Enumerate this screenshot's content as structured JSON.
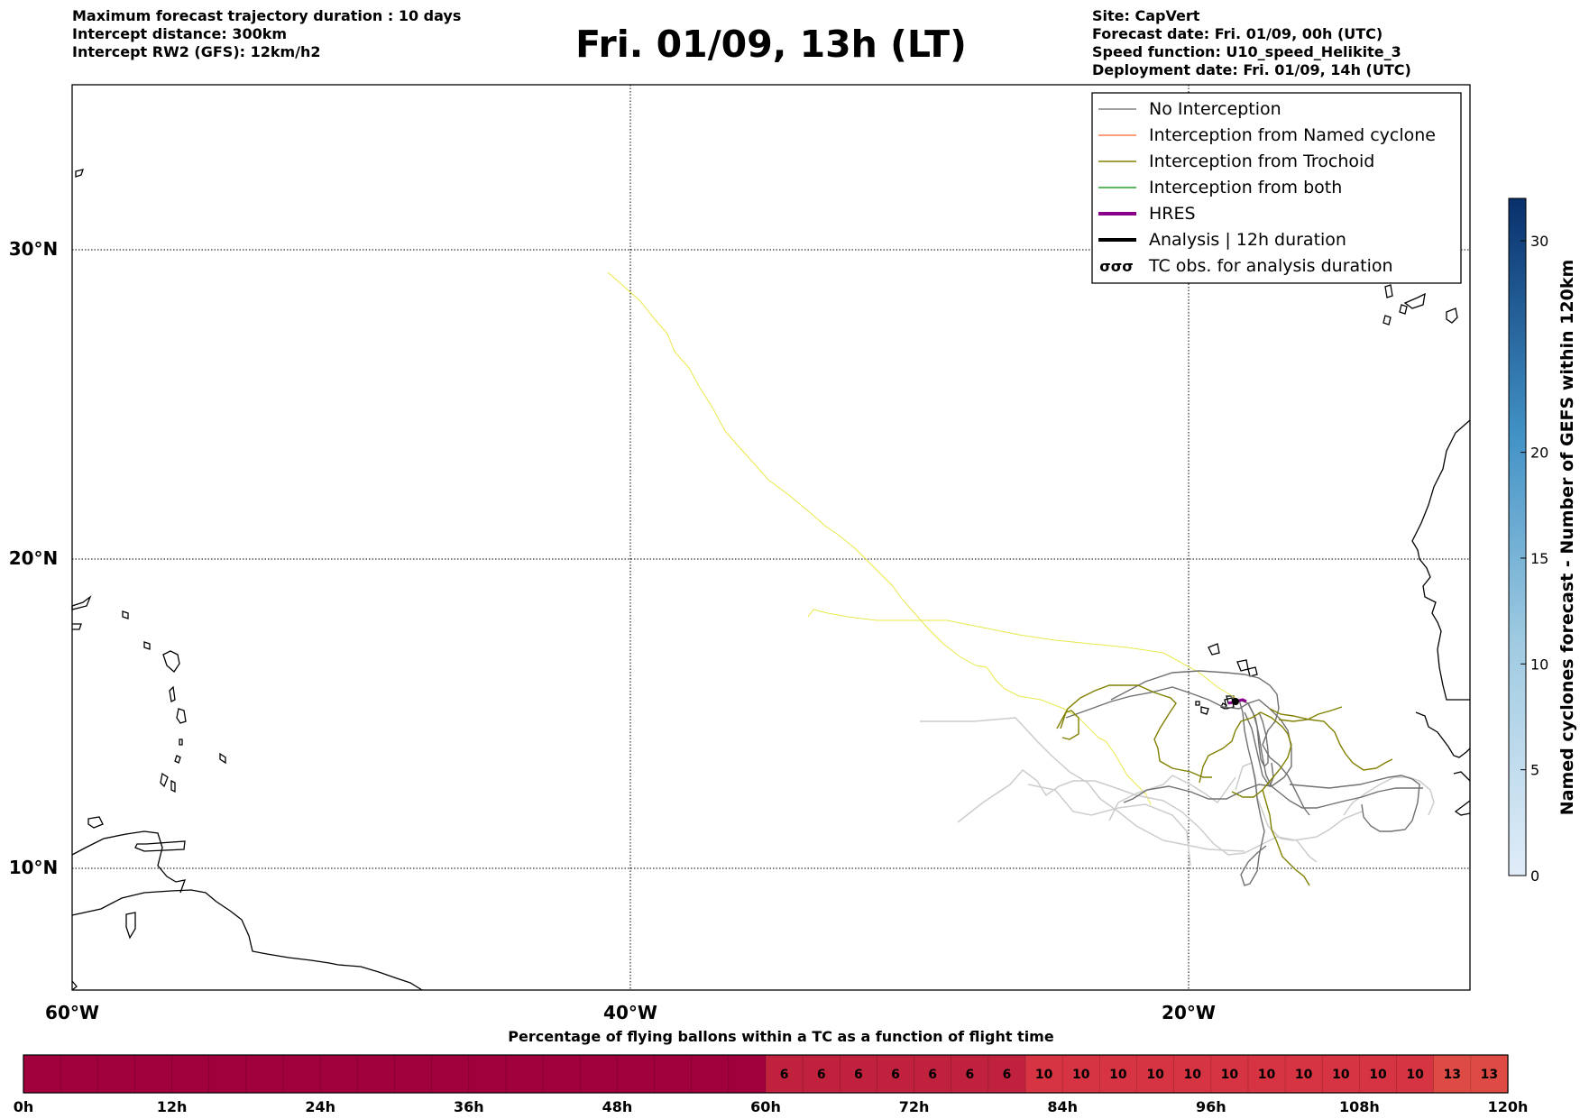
{
  "header": {
    "left_lines": [
      "Maximum forecast trajectory duration : 10 days",
      "Intercept distance: 300km",
      "Intercept RW2 (GFS):  12km/h2"
    ],
    "title": "Fri. 01/09, 13h (LT)",
    "right_lines": [
      "Site: CapVert",
      "Forecast date: Fri. 01/09, 00h (UTC)",
      "Speed function: U10_speed_Helikite_3",
      "Deployment date: Fri. 01/09, 14h (UTC)"
    ]
  },
  "map": {
    "lat_labels": [
      {
        "lat": 30,
        "text": "30°N"
      },
      {
        "lat": 20,
        "text": "20°N"
      },
      {
        "lat": 10,
        "text": "10°N"
      }
    ],
    "lon_labels": [
      {
        "lon": -60,
        "text": "60°W"
      },
      {
        "lon": -40,
        "text": "40°W"
      },
      {
        "lon": -20,
        "text": "20°W"
      }
    ],
    "legend": [
      {
        "label": "No Interception",
        "color": "#808080",
        "style": "thin"
      },
      {
        "label": "Interception from Named cyclone",
        "color": "#ff7f50",
        "style": "thin"
      },
      {
        "label": "Interception from Trochoid",
        "color": "#808000",
        "style": "thin"
      },
      {
        "label": "Interception from both",
        "color": "#2ca02c",
        "style": "thin"
      },
      {
        "label": "HRES",
        "color": "#8b008b",
        "style": "thick"
      },
      {
        "label": "Analysis | 12h duration",
        "color": "#000000",
        "style": "thick"
      },
      {
        "label": "TC obs. for analysis duration",
        "color": "#000000",
        "style": "tc-symbol"
      }
    ],
    "colors": {
      "hres_track": "#ffff00",
      "no_interception": "#808080",
      "trochoid": "#808000",
      "light_track": "#cccccc"
    }
  },
  "colorbar": {
    "label": "Named cyclones forecast - Number of GEFS within 120km",
    "ticks": [
      {
        "value": 0,
        "text": "0"
      },
      {
        "value": 5,
        "text": "5"
      },
      {
        "value": 10,
        "text": "10"
      },
      {
        "value": 15,
        "text": "15"
      },
      {
        "value": 20,
        "text": "20"
      },
      {
        "value": 30,
        "text": "30"
      }
    ],
    "max": 32,
    "gradient": [
      "#d6e6f4",
      "#08306b"
    ]
  },
  "timebar": {
    "title": "Percentage of flying ballons within a TC as a function of flight time",
    "ticks": [
      "0h",
      "12h",
      "24h",
      "36h",
      "48h",
      "60h",
      "72h",
      "84h",
      "96h",
      "108h",
      "120h"
    ],
    "segment_hours": 3,
    "cells": [
      0,
      0,
      0,
      0,
      0,
      0,
      0,
      0,
      0,
      0,
      0,
      0,
      0,
      0,
      0,
      0,
      0,
      0,
      0,
      0,
      6,
      6,
      6,
      6,
      6,
      6,
      6,
      10,
      10,
      10,
      10,
      10,
      10,
      10,
      10,
      10,
      10,
      10,
      13,
      13
    ],
    "colors": {
      "0": "#a0003c",
      "6": "#c0223e",
      "10": "#d63442",
      "13": "#de4a44"
    }
  }
}
